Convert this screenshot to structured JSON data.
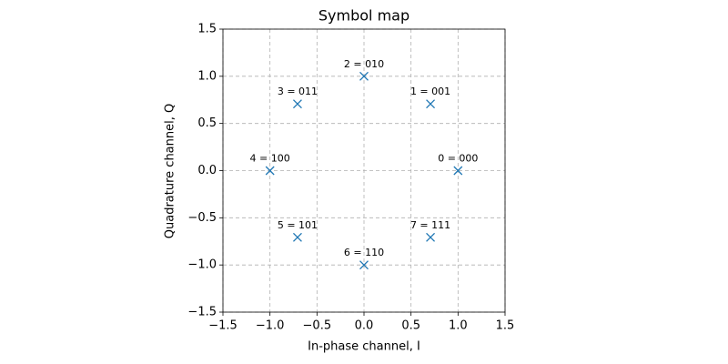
{
  "chart_data": {
    "type": "scatter",
    "title": "Symbol map",
    "xlabel": "In-phase channel, I",
    "ylabel": "Quadrature channel, Q",
    "series": [
      {
        "color": "#1f77b4",
        "x": [
          1,
          0.707,
          0,
          -0.707,
          -1,
          -0.707,
          0,
          0.707
        ],
        "values": [
          0,
          0.707,
          1,
          0.707,
          0,
          -0.707,
          -1,
          -0.707
        ]
      }
    ],
    "annotations": [
      "0 = 000",
      "1 = 001",
      "2 = 010",
      "3 = 011",
      "4 = 100",
      "5 = 101",
      "6 = 110",
      "7 = 111"
    ],
    "xlim": [
      -1.5,
      1.5
    ],
    "ylim": [
      -1.5,
      1.5
    ],
    "xticks": [
      {
        "value": -1.5,
        "label": "−1.5"
      },
      {
        "value": -1,
        "label": "−1.0"
      },
      {
        "value": -0.5,
        "label": "−0.5"
      },
      {
        "value": 0,
        "label": "0.0"
      },
      0.5,
      {
        "value": 1,
        "label": "1.0"
      },
      1.5
    ],
    "yticks": [
      {
        "value": -1.5,
        "label": "−1.5"
      },
      {
        "value": -1,
        "label": "−1.0"
      },
      {
        "value": -0.5,
        "label": "−0.5"
      },
      {
        "value": 0,
        "label": "0.0"
      },
      0.5,
      {
        "value": 1,
        "label": "1.0"
      },
      1.5
    ],
    "grid": true
  }
}
